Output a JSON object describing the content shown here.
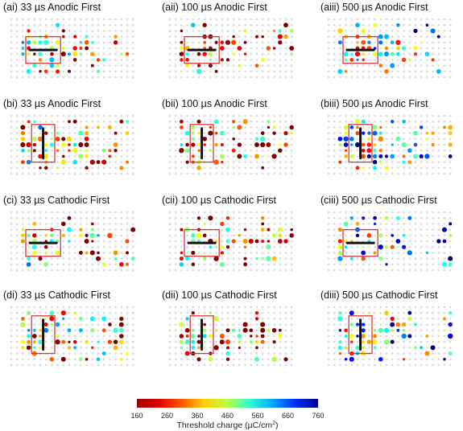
{
  "chart_data": {
    "type": "scatter",
    "rows": [
      "Anodic First",
      "Anodic First",
      "Cathodic First",
      "Cathodic First"
    ],
    "panels": [
      {
        "title": "(ai) 33 µs Anodic First"
      },
      {
        "title": "(aii) 100 µs Anodic First"
      },
      {
        "title": "(aiii) 500 µs Anodic First"
      },
      {
        "title": "(bi) 33 µs Anodic First"
      },
      {
        "title": "(bii) 100 µs Anodic First"
      },
      {
        "title": "(biii) 500 µs Anodic First"
      },
      {
        "title": "(ci) 33 µs Cathodic First"
      },
      {
        "title": "(cii) 100 µs Cathodic First"
      },
      {
        "title": "(ciii) 500 µs Cathodic First"
      },
      {
        "title": "(di) 33 µs Cathodic First"
      },
      {
        "title": "(dii) 100 µs Cathodic First"
      },
      {
        "title": "(diii) 500 µs Cathodic First"
      }
    ],
    "colorbar": {
      "label": "Threshold charge (µC/cm",
      "label_sup": "2",
      "label_end": ")",
      "ticks": [
        "160",
        "260",
        "360",
        "460",
        "560",
        "660",
        "760"
      ],
      "range": [
        160,
        760
      ],
      "colormap": "jet-reversed",
      "low_color": "#a00000",
      "high_color": "#00008b"
    },
    "electrode_box_color": "#d23a3a",
    "grid_dot_color": "#d9d9d9"
  }
}
